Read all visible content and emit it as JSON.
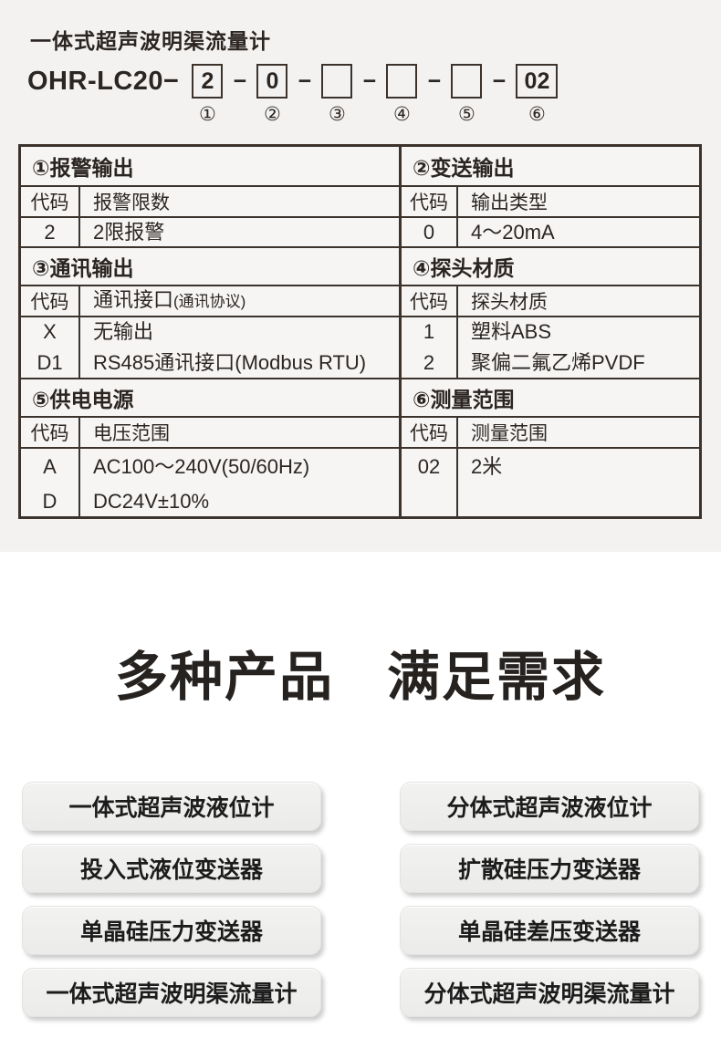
{
  "header": {
    "title": "一体式超声波明渠流量计",
    "model": {
      "prefix": "OHR-LC20−",
      "dash": "−",
      "segments": [
        {
          "value": "2",
          "label": "①"
        },
        {
          "value": "0",
          "label": "②"
        },
        {
          "value": "",
          "label": "③"
        },
        {
          "value": "",
          "label": "④"
        },
        {
          "value": "",
          "label": "⑤"
        },
        {
          "value": "02",
          "label": "⑥"
        }
      ]
    }
  },
  "spec_table": {
    "code_header": "代码",
    "left": {
      "sections": [
        {
          "title": "①报警输出",
          "col_header": "报警限数",
          "col_header_small": "",
          "rows": [
            {
              "code": "2",
              "desc": "2限报警"
            }
          ]
        },
        {
          "title": "③通讯输出",
          "col_header": "通讯接口",
          "col_header_small": "(通讯协议)",
          "rows": [
            {
              "code": "X",
              "desc": "无输出"
            },
            {
              "code": "D1",
              "desc": "RS485通讯接口(Modbus RTU)"
            }
          ]
        },
        {
          "title": "⑤供电电源",
          "col_header": "电压范围",
          "col_header_small": "",
          "rows": [
            {
              "code": "A",
              "desc": "AC100～240V(50/60Hz)"
            },
            {
              "code": "D",
              "desc": "DC24V±10%"
            }
          ]
        }
      ]
    },
    "right": {
      "sections": [
        {
          "title": "②变送输出",
          "col_header": "输出类型",
          "rows": [
            {
              "code": "0",
              "desc": "4～20mA"
            }
          ]
        },
        {
          "title": "④探头材质",
          "col_header": "探头材质",
          "rows": [
            {
              "code": "1",
              "desc": "塑料ABS"
            },
            {
              "code": "2",
              "desc": "聚偏二氟乙烯PVDF"
            }
          ]
        },
        {
          "title": "⑥测量范围",
          "col_header": "测量范围",
          "rows": [
            {
              "code": "02",
              "desc": "2米"
            }
          ]
        }
      ]
    }
  },
  "hero": {
    "part1": "多种产品",
    "part2": "满足需求"
  },
  "products": {
    "left": [
      "一体式超声波液位计",
      "投入式液位变送器",
      "单晶硅压力变送器",
      "一体式超声波明渠流量计"
    ],
    "right": [
      "分体式超声波液位计",
      "扩散硅压力变送器",
      "单晶硅差压变送器",
      "分体式超声波明渠流量计"
    ]
  },
  "colors": {
    "page_bg_top": "#f4f2f0",
    "page_bg_bottom": "#ffffff",
    "table_border": "#3c332c",
    "text": "#2c2623",
    "button_bg": "#ececeb"
  }
}
